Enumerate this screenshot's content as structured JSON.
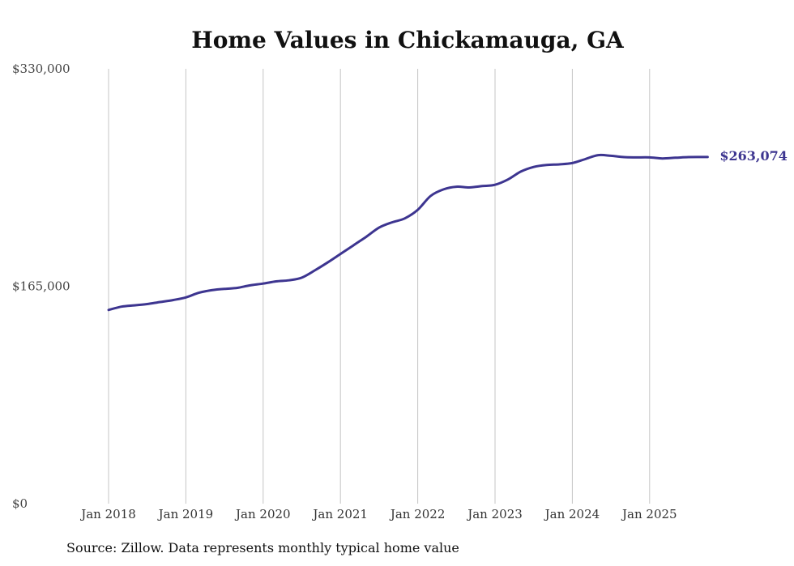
{
  "chart_data": {
    "type": "line",
    "title": "Home Values in Chickamauga, GA",
    "xlabel": "",
    "ylabel": "",
    "ylim": [
      0,
      330000
    ],
    "y_ticks": [
      0,
      165000,
      330000
    ],
    "y_tick_labels": [
      "$0",
      "$165,000",
      "$330,000"
    ],
    "x_tick_labels": [
      "Jan 2018",
      "Jan 2019",
      "Jan 2020",
      "Jan 2021",
      "Jan 2022",
      "Jan 2023",
      "Jan 2024",
      "Jan 2025"
    ],
    "x_tick_values": [
      2018.0,
      2019.0,
      2020.0,
      2021.0,
      2022.0,
      2023.0,
      2024.0,
      2025.0
    ],
    "xlim": [
      2018.0,
      2025.75
    ],
    "grid": "vertical",
    "series": [
      {
        "name": "Typical home value",
        "color": "#3d3590",
        "x": [
          2018.0,
          2018.167,
          2018.333,
          2018.5,
          2018.667,
          2018.833,
          2019.0,
          2019.167,
          2019.333,
          2019.5,
          2019.667,
          2019.833,
          2020.0,
          2020.167,
          2020.333,
          2020.5,
          2020.667,
          2020.833,
          2021.0,
          2021.167,
          2021.333,
          2021.5,
          2021.667,
          2021.833,
          2022.0,
          2022.167,
          2022.333,
          2022.5,
          2022.667,
          2022.833,
          2023.0,
          2023.167,
          2023.333,
          2023.5,
          2023.667,
          2023.833,
          2024.0,
          2024.167,
          2024.333,
          2024.5,
          2024.667,
          2024.833,
          2025.0,
          2025.167,
          2025.333,
          2025.5,
          2025.75
        ],
        "values": [
          147000,
          149500,
          150500,
          151500,
          153000,
          154500,
          156500,
          160000,
          162000,
          163000,
          163800,
          165700,
          167000,
          168700,
          169500,
          171500,
          177000,
          183000,
          189500,
          196000,
          202500,
          209500,
          213500,
          216500,
          223000,
          233500,
          238500,
          240500,
          240000,
          241000,
          242000,
          246000,
          252000,
          255500,
          257000,
          257500,
          258500,
          261500,
          264500,
          264000,
          263000,
          262800,
          262800,
          262000,
          262500,
          263000,
          263074
        ]
      }
    ],
    "end_label": "$263,074",
    "source_note": "Source: Zillow. Data represents monthly typical home value"
  }
}
